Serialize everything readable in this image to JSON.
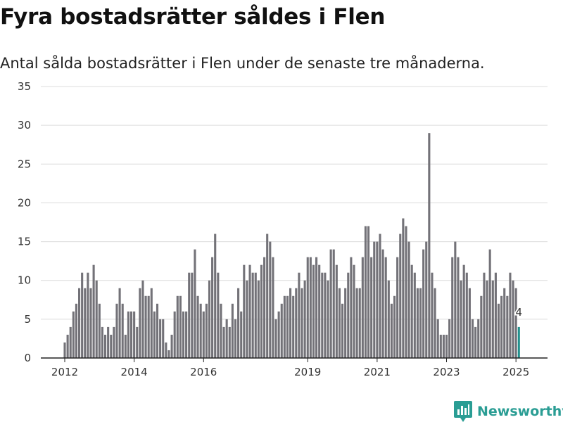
{
  "title": "Fyra bostadsrätter såldes i Flen",
  "subtitle": "Antal sålda bostadsrätter i Flen under de senaste tre månaderna.",
  "brand": {
    "name": "Newsworthy",
    "icon": "newsworthy-logo-icon"
  },
  "colors": {
    "bar": "#737278",
    "highlight": "#22918d",
    "grid": "#dcdcdc",
    "brand": "#2a9d94"
  },
  "chart_data": {
    "type": "bar",
    "title": "Fyra bostadsrätter såldes i Flen",
    "subtitle": "Antal sålda bostadsrätter i Flen under de senaste tre månaderna.",
    "xlabel": "",
    "ylabel": "",
    "ylim": [
      0,
      35
    ],
    "yticks": [
      0,
      5,
      10,
      15,
      20,
      25,
      30,
      35
    ],
    "xticks": [
      {
        "label": "2012",
        "index": 0
      },
      {
        "label": "2014",
        "index": 24
      },
      {
        "label": "2016",
        "index": 48
      },
      {
        "label": "2019",
        "index": 84
      },
      {
        "label": "2021",
        "index": 108
      },
      {
        "label": "2023",
        "index": 132
      },
      {
        "label": "2025",
        "index": 156
      }
    ],
    "grid": true,
    "values": [
      2,
      3,
      4,
      6,
      7,
      9,
      11,
      9,
      11,
      9,
      12,
      10,
      7,
      4,
      3,
      4,
      3,
      4,
      7,
      9,
      7,
      3,
      6,
      6,
      6,
      4,
      9,
      10,
      8,
      8,
      9,
      6,
      7,
      5,
      5,
      2,
      1,
      3,
      6,
      8,
      8,
      6,
      6,
      11,
      11,
      14,
      8,
      7,
      6,
      7,
      10,
      13,
      16,
      11,
      7,
      4,
      5,
      4,
      7,
      5,
      9,
      6,
      12,
      10,
      12,
      11,
      11,
      10,
      12,
      13,
      16,
      15,
      13,
      5,
      6,
      7,
      8,
      8,
      9,
      8,
      9,
      11,
      9,
      10,
      13,
      13,
      12,
      13,
      12,
      11,
      11,
      10,
      14,
      14,
      12,
      9,
      7,
      9,
      11,
      13,
      12,
      9,
      9,
      13,
      17,
      17,
      13,
      15,
      15,
      16,
      14,
      13,
      10,
      7,
      8,
      13,
      16,
      18,
      17,
      15,
      12,
      11,
      9,
      9,
      14,
      15,
      29,
      11,
      9,
      5,
      3,
      3,
      3,
      5,
      13,
      15,
      13,
      10,
      12,
      11,
      9,
      5,
      4,
      5,
      8,
      11,
      10,
      14,
      10,
      11,
      7,
      8,
      9,
      8,
      11,
      10,
      9,
      4
    ],
    "highlight_last": true,
    "annotation": {
      "index": 158,
      "label": "4"
    }
  }
}
